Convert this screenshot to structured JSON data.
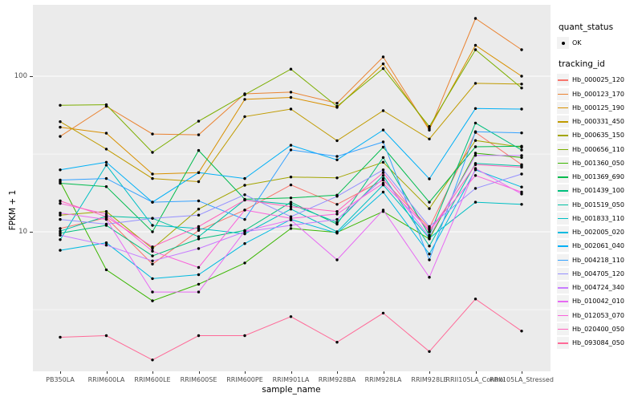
{
  "chart_data": {
    "type": "line",
    "title": "",
    "xlabel": "sample_name",
    "ylabel": "FPKM + 1",
    "y_scale": "log10",
    "y_tick_values": [
      100,
      10
    ],
    "y_tick_labels": [
      "100",
      "10"
    ],
    "y_minor_tick_values": [
      31.6,
      3.16
    ],
    "ylim_log": [
      1.25,
      290
    ],
    "grid": "on",
    "legend_position": "right",
    "point_marker": "filled-circle",
    "categories": [
      "PB350LA",
      "RRIM600LA",
      "RRIM600LE",
      "RRIM600SE",
      "RRIM600PE",
      "RRIM901LA",
      "RRIM928BA",
      "RRIM928LA",
      "RRIM928LE",
      "RRII105LA_Control",
      "RRII105LA_Stressed"
    ],
    "series": [
      {
        "tracking_id": "Hb_000025_120",
        "color": "#F8766D",
        "values": [
          10.5,
          12.3,
          6.2,
          10.2,
          13.8,
          20.0,
          15.0,
          21.5,
          10.6,
          43.5,
          27.0
        ]
      },
      {
        "tracking_id": "Hb_000123_170",
        "color": "#EA8331",
        "values": [
          41.0,
          64.0,
          42.5,
          42.0,
          77.0,
          79.0,
          67.0,
          133.0,
          45.0,
          235.0,
          148.0
        ]
      },
      {
        "tracking_id": "Hb_000125_190",
        "color": "#D89000",
        "values": [
          47.0,
          43.0,
          23.5,
          24.0,
          71.0,
          73.0,
          63.0,
          120.0,
          46.0,
          158.0,
          100.0
        ]
      },
      {
        "tracking_id": "Hb_000331_450",
        "color": "#C09B00",
        "values": [
          51.0,
          34.0,
          22.0,
          21.0,
          55.0,
          61.5,
          38.5,
          60.0,
          39.5,
          90.0,
          89.0
        ]
      },
      {
        "tracking_id": "Hb_000635_150",
        "color": "#A3A500",
        "values": [
          12.8,
          13.5,
          7.8,
          14.0,
          19.9,
          22.5,
          22.2,
          28.0,
          14.1,
          38.6,
          35.0
        ]
      },
      {
        "tracking_id": "Hb_000656_110",
        "color": "#7CAE00",
        "values": [
          65.0,
          65.5,
          32.4,
          51.4,
          76.0,
          111.0,
          64.0,
          112.0,
          47.5,
          148.0,
          84.0
        ]
      },
      {
        "tracking_id": "Hb_001360_050",
        "color": "#39B600",
        "values": [
          21.0,
          5.7,
          3.6,
          4.6,
          6.3,
          10.5,
          9.9,
          13.5,
          9.0,
          32.0,
          30.0
        ]
      },
      {
        "tracking_id": "Hb_001369_690",
        "color": "#00BB4E",
        "values": [
          20.5,
          19.5,
          10.0,
          33.3,
          16.2,
          16.5,
          17.2,
          35.0,
          15.5,
          35.2,
          35.5
        ]
      },
      {
        "tracking_id": "Hb_001439_100",
        "color": "#00BF7D",
        "values": [
          9.8,
          11.0,
          7.0,
          9.0,
          10.2,
          15.5,
          11.2,
          30.0,
          9.5,
          50.0,
          33.5
        ]
      },
      {
        "tracking_id": "Hb_001519_050",
        "color": "#00C1A3",
        "values": [
          10.1,
          12.6,
          12.2,
          9.3,
          16.0,
          15.0,
          11.5,
          23.0,
          8.1,
          27.5,
          26.5
        ]
      },
      {
        "tracking_id": "Hb_001833_110",
        "color": "#00BFC4",
        "values": [
          8.9,
          26.8,
          11.0,
          10.5,
          9.7,
          14.0,
          10.0,
          20.0,
          9.1,
          15.5,
          15.0
        ]
      },
      {
        "tracking_id": "Hb_002005_020",
        "color": "#00BAE0",
        "values": [
          7.6,
          8.5,
          5.0,
          5.3,
          8.4,
          12.0,
          9.8,
          18.0,
          7.2,
          25.0,
          19.4
        ]
      },
      {
        "tracking_id": "Hb_002061_040",
        "color": "#00B0F6",
        "values": [
          25.0,
          28.0,
          15.5,
          24.0,
          22.0,
          36.0,
          29.0,
          45.1,
          21.9,
          62.0,
          61.5
        ]
      },
      {
        "tracking_id": "Hb_004218_110",
        "color": "#35A2FF",
        "values": [
          21.5,
          22.0,
          15.5,
          15.8,
          12.0,
          33.6,
          30.5,
          37.8,
          6.6,
          44.0,
          43.2
        ]
      },
      {
        "tracking_id": "Hb_004705_120",
        "color": "#9590FF",
        "values": [
          12.0,
          11.2,
          12.2,
          12.8,
          17.3,
          12.5,
          16.9,
          25.0,
          10.8,
          19.0,
          23.5
        ]
      },
      {
        "tracking_id": "Hb_004724_340",
        "color": "#C77CFF",
        "values": [
          9.5,
          8.2,
          6.5,
          7.8,
          10.0,
          11.0,
          12.0,
          22.0,
          9.3,
          31.0,
          30.9
        ]
      },
      {
        "tracking_id": "Hb_010042_010",
        "color": "#E76BF3",
        "values": [
          13.2,
          12.0,
          4.1,
          4.1,
          10.1,
          11.9,
          6.6,
          13.8,
          5.1,
          25.5,
          17.5
        ]
      },
      {
        "tracking_id": "Hb_012053_070",
        "color": "#FA62DB",
        "values": [
          15.2,
          13.0,
          7.5,
          5.9,
          13.8,
          12.2,
          13.0,
          20.5,
          10.3,
          23.0,
          18.0
        ]
      },
      {
        "tracking_id": "Hb_020400_050",
        "color": "#FF62BC",
        "values": [
          15.8,
          12.5,
          8.0,
          10.8,
          16.0,
          14.5,
          13.5,
          24.0,
          10.0,
          27.0,
          26.0
        ]
      },
      {
        "tracking_id": "Hb_093084_050",
        "color": "#FF6A98",
        "values": [
          2.1,
          2.15,
          1.5,
          2.15,
          2.15,
          2.85,
          1.95,
          3.0,
          1.7,
          3.7,
          2.3
        ]
      }
    ]
  },
  "axes": {
    "x_title": "sample_name",
    "y_title": "FPKM + 1"
  },
  "legend": {
    "quant_status_title": "quant_status",
    "ok_label": "OK",
    "tracking_title": "tracking_id"
  },
  "colors": {
    "panel_bg": "#EBEBEB",
    "grid": "#FFFFFF",
    "point": "#000000",
    "legend_key_bg": "#F2F2F2",
    "tick_text": "#4D4D4D"
  }
}
